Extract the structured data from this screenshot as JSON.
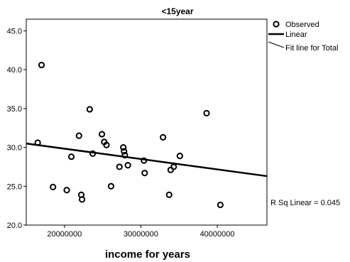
{
  "chart_data": {
    "type": "scatter",
    "title": "<15year",
    "xlabel": "income for years",
    "ylabel": "",
    "xlim": [
      15000000,
      46500000
    ],
    "ylim": [
      20.0,
      46.5
    ],
    "x_ticks": [
      20000000,
      30000000,
      40000000
    ],
    "x_tick_labels": [
      "20000000",
      "30000000",
      "40000000"
    ],
    "y_ticks": [
      20.0,
      25.0,
      30.0,
      35.0,
      40.0,
      45.0
    ],
    "y_tick_labels": [
      "20.0",
      "25.0",
      "30.0",
      "35.0",
      "40.0",
      "45.0"
    ],
    "grid": false,
    "legend_position": "right",
    "legend": [
      {
        "label": "Observed",
        "marker": "circle"
      },
      {
        "label": "Linear",
        "marker": "thick-line"
      },
      {
        "label": "Fit line for Total",
        "marker": "thin-line"
      }
    ],
    "annotation": "R Sq Linear = 0.045",
    "series": [
      {
        "name": "Observed",
        "points": [
          [
            16500000,
            30.6
          ],
          [
            17000000,
            40.6
          ],
          [
            18500000,
            24.9
          ],
          [
            20300000,
            24.5
          ],
          [
            20900000,
            28.8
          ],
          [
            21900000,
            31.5
          ],
          [
            22200000,
            23.9
          ],
          [
            22300000,
            23.3
          ],
          [
            23300000,
            34.9
          ],
          [
            23700000,
            29.2
          ],
          [
            24900000,
            31.7
          ],
          [
            25200000,
            30.7
          ],
          [
            25500000,
            30.3
          ],
          [
            26100000,
            25.0
          ],
          [
            27200000,
            27.5
          ],
          [
            27700000,
            30.0
          ],
          [
            27800000,
            29.5
          ],
          [
            27900000,
            29.0
          ],
          [
            28300000,
            27.7
          ],
          [
            30400000,
            28.3
          ],
          [
            30500000,
            26.7
          ],
          [
            32900000,
            31.3
          ],
          [
            33700000,
            23.9
          ],
          [
            33900000,
            27.1
          ],
          [
            34300000,
            27.5
          ],
          [
            35100000,
            28.9
          ],
          [
            38600000,
            34.4
          ],
          [
            40400000,
            22.6
          ]
        ]
      }
    ],
    "fit_line": {
      "name": "Linear",
      "x": [
        15000000,
        46500000
      ],
      "y": [
        30.5,
        26.3
      ]
    }
  }
}
